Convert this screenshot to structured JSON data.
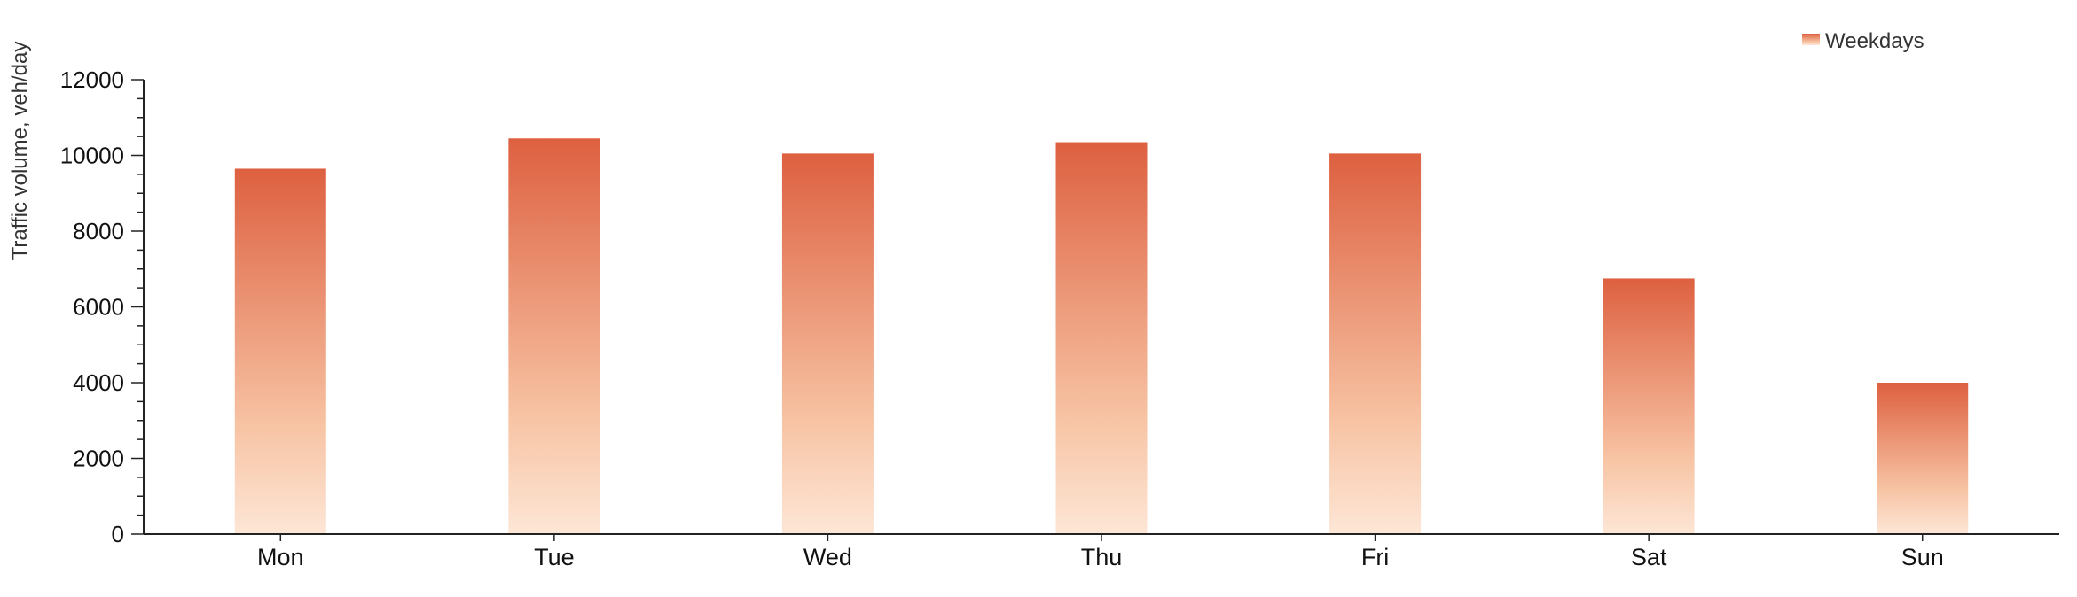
{
  "chart_data": {
    "type": "bar",
    "title": "",
    "xlabel": "",
    "ylabel": "Traffic volume, veh/day",
    "categories": [
      "Mon",
      "Tue",
      "Wed",
      "Thu",
      "Fri",
      "Sat",
      "Sun"
    ],
    "series": [
      {
        "name": "Weekdays",
        "values": [
          9650,
          10450,
          10050,
          10350,
          10050,
          6750,
          4000
        ]
      }
    ],
    "ylim": [
      0,
      12000
    ],
    "yticks": [
      0,
      2000,
      4000,
      6000,
      8000,
      10000,
      12000
    ],
    "grid": false,
    "legend_position": "top-right",
    "colors": {
      "bar_top": "#dd6040",
      "bar_mid": "#f7c3a3",
      "bar_bottom": "#fde6d6",
      "axis": "#222222"
    }
  }
}
